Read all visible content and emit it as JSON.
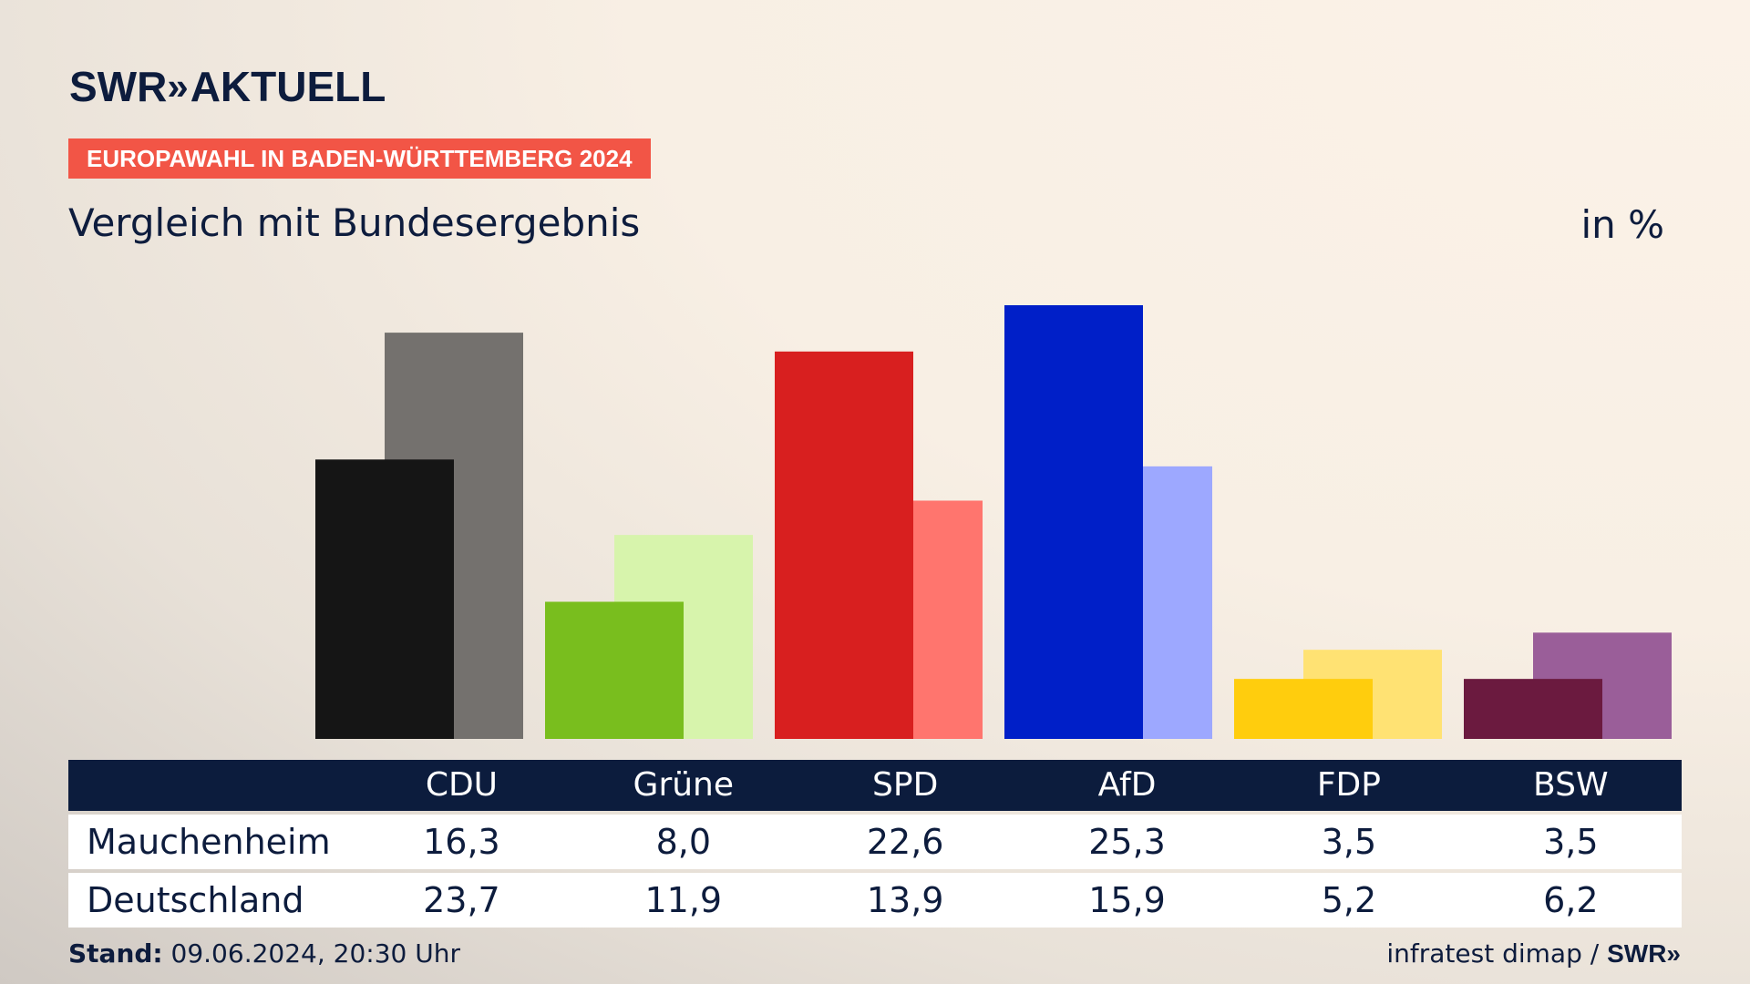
{
  "header": {
    "logo_brand": "SWR",
    "logo_chevrons": "»",
    "logo_title": "AKTUELL",
    "tag": "EUROPAWAHL IN BADEN-WÜRTTEMBERG 2024",
    "subtitle": "Vergleich mit Bundesergebnis",
    "unit": "in %"
  },
  "footer": {
    "stand_label": "Stand:",
    "stand_value": "09.06.2024, 20:30 Uhr",
    "source": "infratest dimap /",
    "source_brand": "SWR»"
  },
  "chart_data": {
    "type": "bar",
    "categories": [
      "CDU",
      "Grüne",
      "SPD",
      "AfD",
      "FDP",
      "BSW"
    ],
    "series": [
      {
        "name": "Mauchenheim",
        "values": [
          16.3,
          8.0,
          22.6,
          25.3,
          3.5,
          3.5
        ],
        "labels": [
          "16,3",
          "8,0",
          "22,6",
          "25,3",
          "3,5",
          "3,5"
        ]
      },
      {
        "name": "Deutschland",
        "values": [
          23.7,
          11.9,
          13.9,
          15.9,
          5.2,
          6.2
        ],
        "labels": [
          "23,7",
          "11,9",
          "13,9",
          "15,9",
          "5,2",
          "6,2"
        ]
      }
    ],
    "colors": {
      "primary": [
        "#151515",
        "#79be1e",
        "#d81f1f",
        "#001fc8",
        "#ffcd0d",
        "#6b1a3f"
      ],
      "secondary": [
        "#74716e",
        "#d7f4ac",
        "#ff756e",
        "#9da8ff",
        "#ffe273",
        "#9a5e99"
      ]
    },
    "ylim": [
      0,
      25.3
    ]
  },
  "colors": {
    "navy": "#0c1c3d",
    "tag_red": "#f25546"
  }
}
